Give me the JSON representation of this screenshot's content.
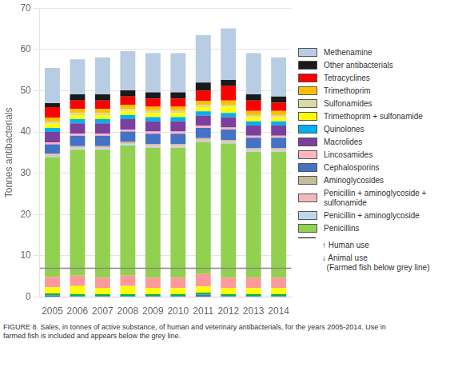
{
  "chart_data": {
    "type": "bar",
    "stacked": true,
    "categories": [
      "2005",
      "2006",
      "2007",
      "2008",
      "2009",
      "2010",
      "2011",
      "2012",
      "2013",
      "2014"
    ],
    "series": [
      {
        "color": "#4472c4",
        "values": [
          0.4,
          0.2,
          0.2,
          0.2,
          0.2,
          0.2,
          0.6,
          0.2,
          0.2,
          0.2
        ]
      },
      {
        "color": "#00b050",
        "values": [
          0.5,
          0.5,
          0.5,
          0.5,
          0.5,
          0.5,
          0.5,
          0.5,
          0.5,
          0.5
        ]
      },
      {
        "color": "#ffff00",
        "values": [
          1.5,
          2.0,
          1.5,
          2.0,
          1.5,
          1.5,
          1.5,
          1.5,
          1.5,
          1.5
        ]
      },
      {
        "color": "#ff9999",
        "values": [
          2.5,
          2.5,
          2.5,
          2.5,
          2.5,
          2.5,
          3.0,
          2.5,
          2.5,
          2.5
        ]
      },
      {
        "name": "Penicillins",
        "color": "#92d050",
        "values": [
          29.0,
          30.5,
          31.0,
          31.5,
          31.5,
          31.5,
          32.0,
          32.5,
          30.5,
          30.5
        ]
      },
      {
        "name": "Penicillin + aminoglycoside",
        "color": "#bdd7ee",
        "values": [
          0.3,
          0.3,
          0.3,
          0.3,
          0.3,
          0.3,
          0.3,
          0.3,
          0.3,
          0.3
        ]
      },
      {
        "name": "Penicillin + aminoglycoside +\nsulfonamide",
        "color": "#f4b8b8",
        "values": [
          0.3,
          0.3,
          0.3,
          0.3,
          0.3,
          0.3,
          0.3,
          0.3,
          0.3,
          0.3
        ]
      },
      {
        "name": "Aminoglycosides",
        "color": "#c4bd97",
        "values": [
          0.3,
          0.3,
          0.3,
          0.3,
          0.3,
          0.3,
          0.3,
          0.3,
          0.3,
          0.3
        ]
      },
      {
        "name": "Cephalosporins",
        "color": "#4472c4",
        "values": [
          2.2,
          2.5,
          2.5,
          2.5,
          2.5,
          2.5,
          2.5,
          2.5,
          2.5,
          2.5
        ]
      },
      {
        "name": "Lincosamides",
        "color": "#ffb6c1",
        "values": [
          0.5,
          0.5,
          0.5,
          0.5,
          0.5,
          0.5,
          0.5,
          0.5,
          0.5,
          0.5
        ]
      },
      {
        "name": "Macrolides",
        "color": "#7b3f9e",
        "values": [
          2.5,
          2.5,
          2.5,
          2.5,
          2.5,
          2.5,
          2.5,
          2.5,
          2.5,
          2.5
        ]
      },
      {
        "name": "Quinolones",
        "color": "#00b0f0",
        "values": [
          1.0,
          1.0,
          1.0,
          1.0,
          1.0,
          1.0,
          1.0,
          1.0,
          1.0,
          1.0
        ]
      },
      {
        "name": "Trimethoprim + sulfonamide",
        "color": "#ffff00",
        "values": [
          1.0,
          1.0,
          1.0,
          1.0,
          1.0,
          1.0,
          1.0,
          1.5,
          1.0,
          1.0
        ]
      },
      {
        "name": "Sulfonamides",
        "color": "#d9d9a0",
        "values": [
          0.5,
          0.5,
          0.5,
          0.5,
          0.5,
          0.5,
          0.5,
          0.5,
          0.5,
          0.5
        ]
      },
      {
        "name": "Trimethoprim",
        "color": "#ffc000",
        "values": [
          1.0,
          1.0,
          1.0,
          1.0,
          1.0,
          1.0,
          1.0,
          1.0,
          1.0,
          1.0
        ]
      },
      {
        "name": "Tetracyclines",
        "color": "#ff0000",
        "values": [
          2.5,
          2.0,
          2.0,
          2.0,
          2.0,
          2.0,
          2.5,
          3.5,
          2.5,
          2.0
        ]
      },
      {
        "name": "Other antibacterials",
        "color": "#1a1a1a",
        "values": [
          1.0,
          1.5,
          1.5,
          1.5,
          1.5,
          1.5,
          2.0,
          1.5,
          1.5,
          1.5
        ]
      },
      {
        "name": "Methenamine",
        "color": "#b8cce4",
        "values": [
          8.5,
          8.5,
          9.0,
          9.5,
          9.5,
          9.5,
          11.5,
          12.5,
          10.0,
          9.5
        ]
      }
    ],
    "ylabel": "Tonnes antibacterials",
    "ylim": [
      0,
      70
    ],
    "yticks": [
      0,
      10,
      20,
      30,
      40,
      50,
      60,
      70
    ],
    "grid": true,
    "legend": "right",
    "reference_lines": [
      {
        "y": 7.0,
        "color": "#888888"
      }
    ],
    "annotations": [
      "↑ Human use",
      "↓ Animal use\n  (Farmed fish below grey line)"
    ],
    "caption": "FIGURE 8. Sales, in tonnes of active substance, of human and veterinary antibacterials, for the years 2005-2014. Use in\nfarmed fish is included and appears below the grey line."
  }
}
